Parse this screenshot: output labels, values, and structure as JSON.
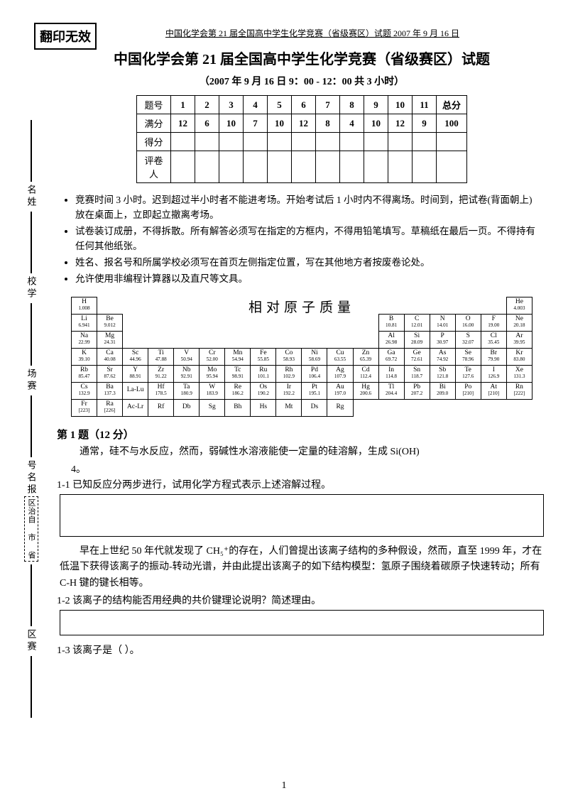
{
  "stamp": "翻印无效",
  "header": "中国化学会第 21 届全国高中学生化学竞赛（省级赛区）试题 2007 年 9 月 16 日",
  "title": "中国化学会第 21 届全国高中学生化学竞赛（省级赛区）试题",
  "subtitle": "（2007 年 9 月 16 日   9：00 - 12：00 共 3 小时）",
  "sidebar": {
    "s1": "名姓",
    "s2": "校学",
    "s3": "场赛",
    "s4": "号名报",
    "box": "区治自 市 省",
    "s5": "区赛"
  },
  "scoretable": {
    "rows": [
      "题号",
      "满分",
      "得分",
      "评卷人"
    ],
    "cols": [
      "1",
      "2",
      "3",
      "4",
      "5",
      "6",
      "7",
      "8",
      "9",
      "10",
      "11",
      "总分"
    ],
    "full": [
      "12",
      "6",
      "10",
      "7",
      "10",
      "12",
      "8",
      "4",
      "10",
      "12",
      "9",
      "100"
    ]
  },
  "rules": [
    "竞赛时间 3 小时。迟到超过半小时者不能进考场。开始考试后 1 小时内不得离场。时间到，把试卷(背面朝上)放在桌面上，立即起立撤离考场。",
    "试卷装订成册，不得拆散。所有解答必须写在指定的方框内，不得用铅笔填写。草稿纸在最后一页。不得持有任何其他纸张。",
    "姓名、报名号和所属学校必须写在首页左侧指定位置，写在其他地方者按废卷论处。",
    "允许使用非编程计算器以及直尺等文具。"
  ],
  "pt_title": "相对原子质量",
  "pt": [
    [
      [
        "H",
        "1.008"
      ],
      null,
      null,
      null,
      null,
      null,
      null,
      null,
      null,
      null,
      null,
      null,
      null,
      null,
      null,
      null,
      null,
      [
        "He",
        "4.003"
      ]
    ],
    [
      [
        "Li",
        "6.941"
      ],
      [
        "Be",
        "9.012"
      ],
      null,
      null,
      null,
      null,
      null,
      null,
      null,
      null,
      null,
      null,
      [
        "B",
        "10.81"
      ],
      [
        "C",
        "12.01"
      ],
      [
        "N",
        "14.01"
      ],
      [
        "O",
        "16.00"
      ],
      [
        "F",
        "19.00"
      ],
      [
        "Ne",
        "20.18"
      ]
    ],
    [
      [
        "Na",
        "22.99"
      ],
      [
        "Mg",
        "24.31"
      ],
      null,
      null,
      null,
      null,
      null,
      null,
      null,
      null,
      null,
      null,
      [
        "Al",
        "26.98"
      ],
      [
        "Si",
        "28.09"
      ],
      [
        "P",
        "30.97"
      ],
      [
        "S",
        "32.07"
      ],
      [
        "Cl",
        "35.45"
      ],
      [
        "Ar",
        "39.95"
      ]
    ],
    [
      [
        "K",
        "39.10"
      ],
      [
        "Ca",
        "40.08"
      ],
      [
        "Sc",
        "44.96"
      ],
      [
        "Ti",
        "47.88"
      ],
      [
        "V",
        "50.94"
      ],
      [
        "Cr",
        "52.00"
      ],
      [
        "Mn",
        "54.94"
      ],
      [
        "Fe",
        "55.85"
      ],
      [
        "Co",
        "58.93"
      ],
      [
        "Ni",
        "58.69"
      ],
      [
        "Cu",
        "63.55"
      ],
      [
        "Zn",
        "65.39"
      ],
      [
        "Ga",
        "69.72"
      ],
      [
        "Ge",
        "72.61"
      ],
      [
        "As",
        "74.92"
      ],
      [
        "Se",
        "78.96"
      ],
      [
        "Br",
        "79.90"
      ],
      [
        "Kr",
        "83.80"
      ]
    ],
    [
      [
        "Rb",
        "85.47"
      ],
      [
        "Sr",
        "87.62"
      ],
      [
        "Y",
        "88.91"
      ],
      [
        "Zr",
        "91.22"
      ],
      [
        "Nb",
        "92.91"
      ],
      [
        "Mo",
        "95.94"
      ],
      [
        "Tc",
        "98.91"
      ],
      [
        "Ru",
        "101.1"
      ],
      [
        "Rh",
        "102.9"
      ],
      [
        "Pd",
        "106.4"
      ],
      [
        "Ag",
        "107.9"
      ],
      [
        "Cd",
        "112.4"
      ],
      [
        "In",
        "114.8"
      ],
      [
        "Sn",
        "118.7"
      ],
      [
        "Sb",
        "121.8"
      ],
      [
        "Te",
        "127.6"
      ],
      [
        "I",
        "126.9"
      ],
      [
        "Xe",
        "131.3"
      ]
    ],
    [
      [
        "Cs",
        "132.9"
      ],
      [
        "Ba",
        "137.3"
      ],
      [
        "La-Lu",
        ""
      ],
      [
        "Hf",
        "178.5"
      ],
      [
        "Ta",
        "180.9"
      ],
      [
        "W",
        "183.9"
      ],
      [
        "Re",
        "186.2"
      ],
      [
        "Os",
        "190.2"
      ],
      [
        "Ir",
        "192.2"
      ],
      [
        "Pt",
        "195.1"
      ],
      [
        "Au",
        "197.0"
      ],
      [
        "Hg",
        "200.6"
      ],
      [
        "Tl",
        "204.4"
      ],
      [
        "Pb",
        "207.2"
      ],
      [
        "Bi",
        "209.0"
      ],
      [
        "Po",
        "[210]"
      ],
      [
        "At",
        "[210]"
      ],
      [
        "Rn",
        "[222]"
      ]
    ],
    [
      [
        "Fr",
        "[223]"
      ],
      [
        "Ra",
        "[226]"
      ],
      [
        "Ac-Lr",
        ""
      ],
      [
        "Rf",
        ""
      ],
      [
        "Db",
        ""
      ],
      [
        "Sg",
        ""
      ],
      [
        "Bh",
        ""
      ],
      [
        "Hs",
        ""
      ],
      [
        "Mt",
        ""
      ],
      [
        "Ds",
        ""
      ],
      [
        "Rg",
        ""
      ],
      null,
      null,
      null,
      null,
      null,
      null,
      null
    ]
  ],
  "q1": {
    "head": "第 1 题（12 分）",
    "p1": "通常，硅不与水反应，然而，弱碱性水溶液能使一定量的硅溶解，生成 Si(OH)",
    "p1b": "4。",
    "sub1": "1-1  已知反应分两步进行，试用化学方程式表示上述溶解过程。",
    "p2": "早在上世纪 50 年代就发现了 CH₅⁺的存在，人们曾提出该离子结构的多种假设，然而，直至 1999 年，才在低温下获得该离子的振动-转动光谱，并由此提出该离子的如下结构模型：氢原子围绕着碳原子快速转动；所有 C-H 键的键长相等。",
    "sub2": "1-2  该离子的结构能否用经典的共价键理论说明？简述理由。",
    "sub3": "1-3  该离子是（            ）。"
  },
  "pagenum": "1"
}
